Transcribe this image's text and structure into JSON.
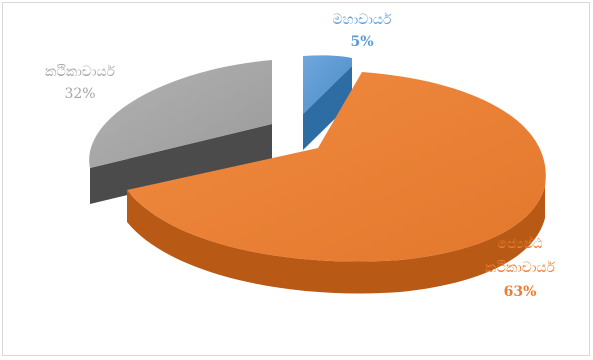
{
  "chart_data": {
    "type": "pie",
    "style": "3d-exploded",
    "slices": [
      {
        "label": "මහාචාර්ය",
        "value": 5,
        "percent_label": "5%",
        "color": "#5b9bd5",
        "label_color": "#5b9bd5"
      },
      {
        "label": "ජ්‍යෙෂ්ඨ කථිකාචාර්ය",
        "label_lines": [
          "ජ්‍යෙෂ්ඨ",
          "කථිකාචාර්ය"
        ],
        "value": 63,
        "percent_label": "63%",
        "color": "#ed7d31",
        "label_color": "#ed7d31"
      },
      {
        "label": "කථිකාචාර්ය",
        "value": 32,
        "percent_label": "32%",
        "color": "#a5a5a5",
        "label_color": "#a5a5a5"
      }
    ]
  }
}
